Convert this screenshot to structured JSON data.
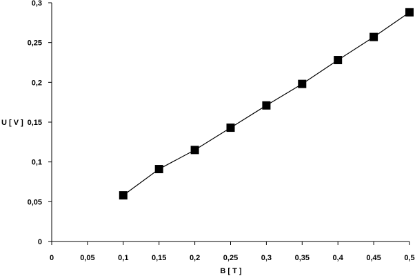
{
  "chart_data": {
    "type": "line",
    "title": "",
    "xlabel": "B [ T ]",
    "ylabel": "U [ V ]",
    "xlim": [
      0,
      0.5
    ],
    "ylim": [
      0,
      0.3
    ],
    "x_ticks": [
      "0",
      "0,05",
      "0,1",
      "0,15",
      "0,2",
      "0,25",
      "0,3",
      "0,35",
      "0,4",
      "0,45",
      "0,5"
    ],
    "y_ticks": [
      "0",
      "0,05",
      "0,1",
      "0,15",
      "0,2",
      "0,25",
      "0,3"
    ],
    "grid": false,
    "marker": "square",
    "color": "#000000",
    "series": [
      {
        "x": [
          0.1,
          0.15,
          0.2,
          0.25,
          0.3,
          0.35,
          0.4,
          0.45,
          0.5
        ],
        "y": [
          0.058,
          0.091,
          0.115,
          0.143,
          0.171,
          0.198,
          0.228,
          0.257,
          0.288
        ]
      }
    ]
  }
}
